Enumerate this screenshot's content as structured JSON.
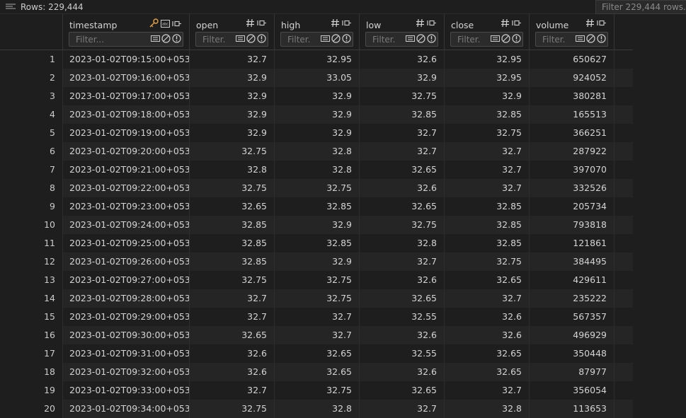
{
  "toolbar": {
    "rows_label": "Rows: 229,444",
    "filter_placeholder": "Filter 229,444 rows..."
  },
  "columns": [
    {
      "name": "timestamp",
      "filter_placeholder": "Filter..."
    },
    {
      "name": "open",
      "filter_placeholder": "Filter..."
    },
    {
      "name": "high",
      "filter_placeholder": "Filter..."
    },
    {
      "name": "low",
      "filter_placeholder": "Filter..."
    },
    {
      "name": "close",
      "filter_placeholder": "Filter..."
    },
    {
      "name": "volume",
      "filter_placeholder": "Filter..."
    }
  ],
  "rows": [
    {
      "idx": "1",
      "timestamp": "2023-01-02T09:15:00+0530",
      "open": "32.7",
      "high": "32.95",
      "low": "32.6",
      "close": "32.95",
      "volume": "650627"
    },
    {
      "idx": "2",
      "timestamp": "2023-01-02T09:16:00+0530",
      "open": "32.9",
      "high": "33.05",
      "low": "32.9",
      "close": "32.95",
      "volume": "924052"
    },
    {
      "idx": "3",
      "timestamp": "2023-01-02T09:17:00+0530",
      "open": "32.9",
      "high": "32.9",
      "low": "32.75",
      "close": "32.9",
      "volume": "380281"
    },
    {
      "idx": "4",
      "timestamp": "2023-01-02T09:18:00+0530",
      "open": "32.9",
      "high": "32.9",
      "low": "32.85",
      "close": "32.85",
      "volume": "165513"
    },
    {
      "idx": "5",
      "timestamp": "2023-01-02T09:19:00+0530",
      "open": "32.9",
      "high": "32.9",
      "low": "32.7",
      "close": "32.75",
      "volume": "366251"
    },
    {
      "idx": "6",
      "timestamp": "2023-01-02T09:20:00+0530",
      "open": "32.75",
      "high": "32.8",
      "low": "32.7",
      "close": "32.7",
      "volume": "287922"
    },
    {
      "idx": "7",
      "timestamp": "2023-01-02T09:21:00+0530",
      "open": "32.8",
      "high": "32.8",
      "low": "32.65",
      "close": "32.7",
      "volume": "397070"
    },
    {
      "idx": "8",
      "timestamp": "2023-01-02T09:22:00+0530",
      "open": "32.75",
      "high": "32.75",
      "low": "32.6",
      "close": "32.7",
      "volume": "332526"
    },
    {
      "idx": "9",
      "timestamp": "2023-01-02T09:23:00+0530",
      "open": "32.65",
      "high": "32.85",
      "low": "32.65",
      "close": "32.85",
      "volume": "205734"
    },
    {
      "idx": "10",
      "timestamp": "2023-01-02T09:24:00+0530",
      "open": "32.85",
      "high": "32.9",
      "low": "32.75",
      "close": "32.85",
      "volume": "793818"
    },
    {
      "idx": "11",
      "timestamp": "2023-01-02T09:25:00+0530",
      "open": "32.85",
      "high": "32.85",
      "low": "32.8",
      "close": "32.85",
      "volume": "121861"
    },
    {
      "idx": "12",
      "timestamp": "2023-01-02T09:26:00+0530",
      "open": "32.85",
      "high": "32.9",
      "low": "32.7",
      "close": "32.75",
      "volume": "384495"
    },
    {
      "idx": "13",
      "timestamp": "2023-01-02T09:27:00+0530",
      "open": "32.75",
      "high": "32.75",
      "low": "32.6",
      "close": "32.65",
      "volume": "429611"
    },
    {
      "idx": "14",
      "timestamp": "2023-01-02T09:28:00+0530",
      "open": "32.7",
      "high": "32.75",
      "low": "32.65",
      "close": "32.7",
      "volume": "235222"
    },
    {
      "idx": "15",
      "timestamp": "2023-01-02T09:29:00+0530",
      "open": "32.7",
      "high": "32.7",
      "low": "32.55",
      "close": "32.6",
      "volume": "567357"
    },
    {
      "idx": "16",
      "timestamp": "2023-01-02T09:30:00+0530",
      "open": "32.65",
      "high": "32.7",
      "low": "32.6",
      "close": "32.6",
      "volume": "496929"
    },
    {
      "idx": "17",
      "timestamp": "2023-01-02T09:31:00+0530",
      "open": "32.6",
      "high": "32.65",
      "low": "32.55",
      "close": "32.65",
      "volume": "350448"
    },
    {
      "idx": "18",
      "timestamp": "2023-01-02T09:32:00+0530",
      "open": "32.6",
      "high": "32.65",
      "low": "32.6",
      "close": "32.65",
      "volume": "87977"
    },
    {
      "idx": "19",
      "timestamp": "2023-01-02T09:33:00+0530",
      "open": "32.7",
      "high": "32.75",
      "low": "32.65",
      "close": "32.7",
      "volume": "356054"
    },
    {
      "idx": "20",
      "timestamp": "2023-01-02T09:34:00+0530",
      "open": "32.75",
      "high": "32.8",
      "low": "32.7",
      "close": "32.8",
      "volume": "113653"
    }
  ],
  "colors": {
    "background": "#1e1e1e",
    "row_alt": "#252526",
    "text": "#d4d4d4",
    "key_icon": "#e2a14a"
  },
  "icons": {
    "rows": "list-icon",
    "timestamp_type": [
      "key-icon",
      "text-type-icon",
      "pin-icon"
    ],
    "numeric_type": [
      "hash-icon",
      "pin-icon"
    ],
    "filter": [
      "filter-mode-icon",
      "null-icon",
      "error-icon"
    ]
  }
}
